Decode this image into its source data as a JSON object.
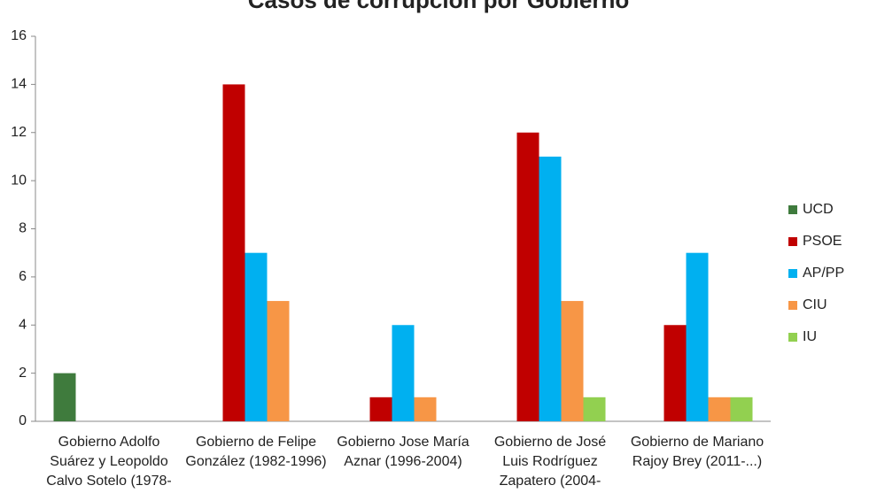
{
  "chart_data": {
    "type": "bar",
    "title": "Casos de corrupción por Gobierno",
    "categories": [
      "Gobierno Adolfo Suárez y Leopoldo Calvo Sotelo (1978-",
      "Gobierno de Felipe González (1982-1996)",
      "Gobierno Jose María Aznar (1996-2004)",
      "Gobierno de José Luis Rodríguez Zapatero (2004-",
      "Gobierno de Mariano Rajoy Brey (2011-...)"
    ],
    "series": [
      {
        "name": "UCD",
        "color": "#3f7b3d",
        "values": [
          2,
          null,
          null,
          null,
          null
        ]
      },
      {
        "name": "PSOE",
        "color": "#c00000",
        "values": [
          null,
          14,
          1,
          12,
          4
        ]
      },
      {
        "name": "AP/PP",
        "color": "#00b0f0",
        "values": [
          null,
          7,
          4,
          11,
          7
        ]
      },
      {
        "name": "CIU",
        "color": "#f79646",
        "values": [
          null,
          5,
          1,
          5,
          1
        ]
      },
      {
        "name": "IU",
        "color": "#92d050",
        "values": [
          null,
          null,
          null,
          1,
          1
        ]
      }
    ],
    "ylim": [
      0,
      16
    ],
    "yticks": [
      0,
      2,
      4,
      6,
      8,
      10,
      12,
      14,
      16
    ],
    "grid": false,
    "legend": "right"
  }
}
